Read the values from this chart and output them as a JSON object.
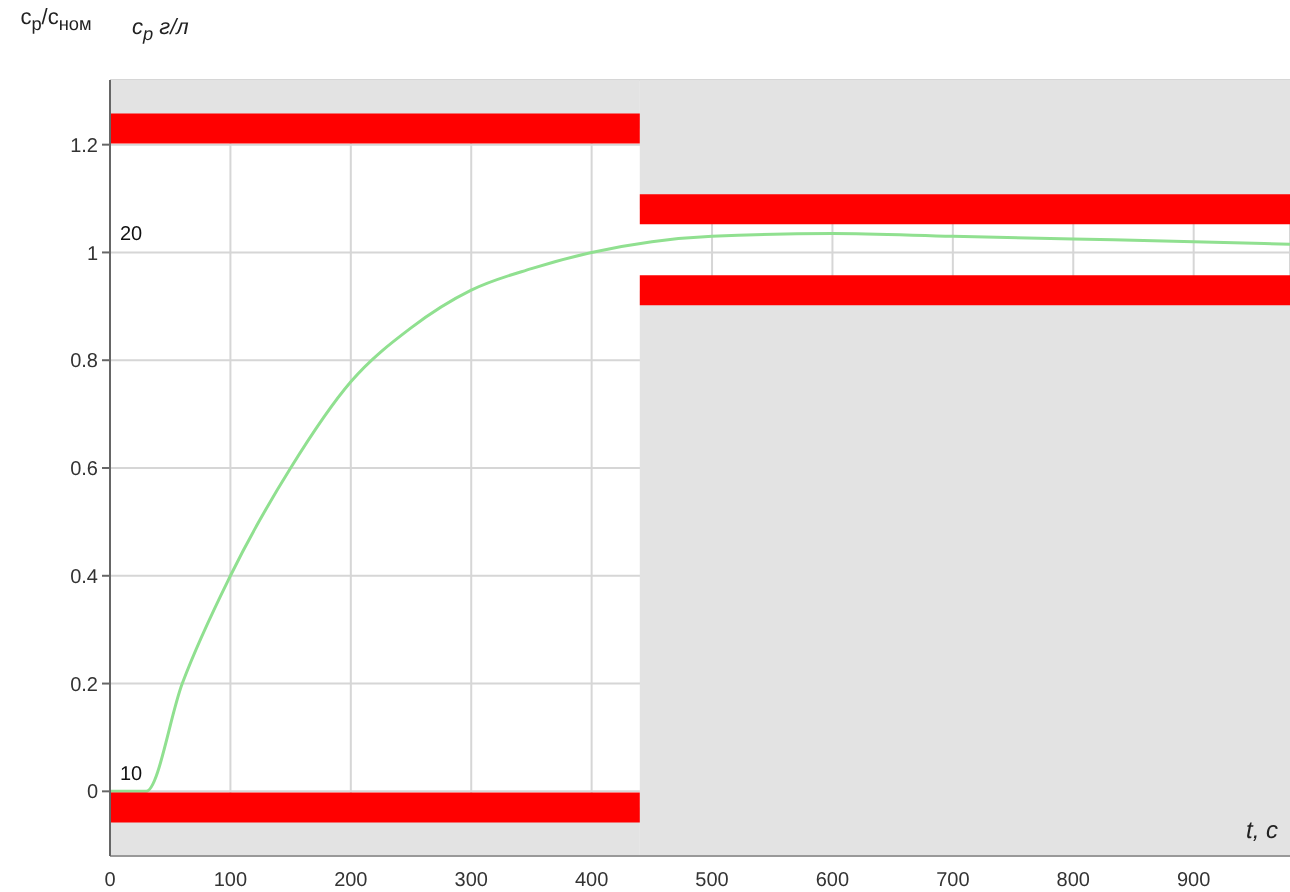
{
  "chart_data": {
    "type": "line",
    "ylabel": "c$_{р}$/c$_{ном}$",
    "y2label": "c$_{р}$ г/л",
    "xlabel": "t, с",
    "xlim": [
      0,
      980
    ],
    "xticks": [
      0,
      100,
      200,
      300,
      400,
      500,
      600,
      700,
      800,
      900
    ],
    "ylim": [
      -0.12,
      1.32
    ],
    "yticks": [
      0,
      0.2,
      0.4,
      0.6,
      0.8,
      1,
      1.2
    ],
    "y2lim": [
      8.8,
      23.2
    ],
    "y2ticks": [
      10,
      20
    ],
    "grid": true,
    "series": [
      {
        "color": "#90e090",
        "x": [
          0,
          30,
          60,
          100,
          150,
          200,
          250,
          300,
          350,
          400,
          450,
          500,
          600,
          700,
          800,
          900,
          980
        ],
        "values": [
          0,
          0,
          0.2,
          0.4,
          0.6,
          0.76,
          0.86,
          0.93,
          0.97,
          1.0,
          1.02,
          1.03,
          1.035,
          1.03,
          1.025,
          1.02,
          1.015
        ]
      },
      {
        "type": "line",
        "color": "#ff0000",
        "x": [
          0,
          440
        ],
        "values": [
          1.23,
          1.23
        ]
      },
      {
        "type": "line",
        "color": "#ff0000",
        "x": [
          0,
          440
        ],
        "values": [
          -0.03,
          -0.03
        ]
      },
      {
        "type": "line",
        "color": "#ff0000",
        "x": [
          440,
          980
        ],
        "values": [
          1.08,
          1.08
        ]
      },
      {
        "type": "line",
        "color": "#ff0000",
        "x": [
          440,
          980
        ],
        "values": [
          0.93,
          0.93
        ]
      }
    ]
  }
}
